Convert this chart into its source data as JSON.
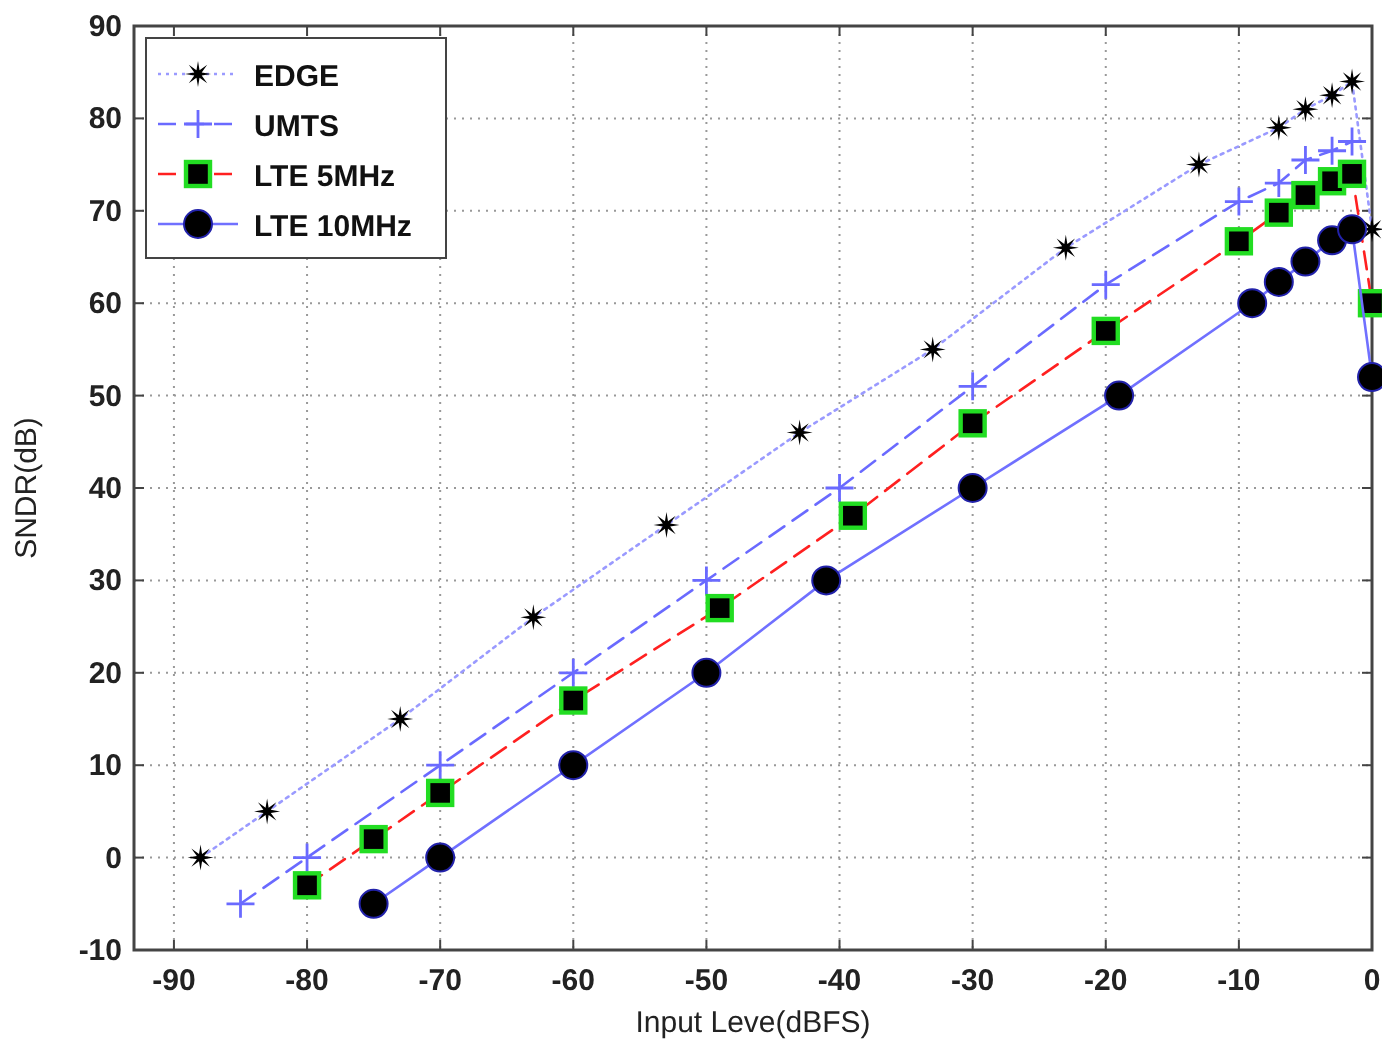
{
  "chart_data": {
    "type": "line",
    "xlabel": "Input Leve(dBFS)",
    "ylabel": "SNDR(dB)",
    "xlim": [
      -93,
      0
    ],
    "ylim": [
      -10,
      90
    ],
    "xticks": [
      -90,
      -80,
      -70,
      -60,
      -50,
      -40,
      -30,
      -20,
      -10,
      0
    ],
    "yticks": [
      -10,
      0,
      10,
      20,
      30,
      40,
      50,
      60,
      70,
      80,
      90
    ],
    "grid": true,
    "legend": "top left",
    "series": [
      {
        "name": "EDGE",
        "color": "#9a9aff",
        "marker": "star",
        "line_style": "dotted",
        "x": [
          -88,
          -83,
          -73,
          -63,
          -53,
          -43,
          -33,
          -23,
          -13,
          -7,
          -5,
          -3,
          -1.5,
          0
        ],
        "values": [
          0,
          5,
          15,
          26,
          36,
          46,
          55,
          66,
          75,
          79,
          81,
          82.5,
          84,
          68
        ]
      },
      {
        "name": "UMTS",
        "color": "#6a6aff",
        "marker": "cross",
        "line_style": "dashed",
        "x": [
          -85,
          -80,
          -70,
          -60,
          -50,
          -40,
          -30,
          -20,
          -10,
          -7,
          -5,
          -3,
          -1.5
        ],
        "values": [
          -5,
          0,
          10,
          20,
          30,
          40,
          51,
          62,
          71,
          73,
          75.5,
          76.5,
          77.5
        ]
      },
      {
        "name": "LTE 5MHz",
        "color": "#ff2020",
        "marker": "square",
        "line_style": "dashed",
        "x": [
          -80,
          -75,
          -70,
          -60,
          -49,
          -39,
          -30,
          -20,
          -10,
          -7,
          -5,
          -3,
          -1.5,
          0
        ],
        "values": [
          -3,
          2,
          7,
          17,
          27,
          37,
          47,
          57,
          66.7,
          69.8,
          71.7,
          73.2,
          74,
          60
        ]
      },
      {
        "name": "LTE 10MHz",
        "color": "#7070ff",
        "marker": "circle",
        "line_style": "solid",
        "x": [
          -75,
          -70,
          -60,
          -50,
          -41,
          -30,
          -19,
          -9,
          -7,
          -5,
          -3,
          -1.5,
          0
        ],
        "values": [
          -5,
          0,
          10,
          20,
          30,
          40,
          50,
          60,
          62.3,
          64.5,
          66.8,
          68,
          52
        ]
      }
    ]
  }
}
